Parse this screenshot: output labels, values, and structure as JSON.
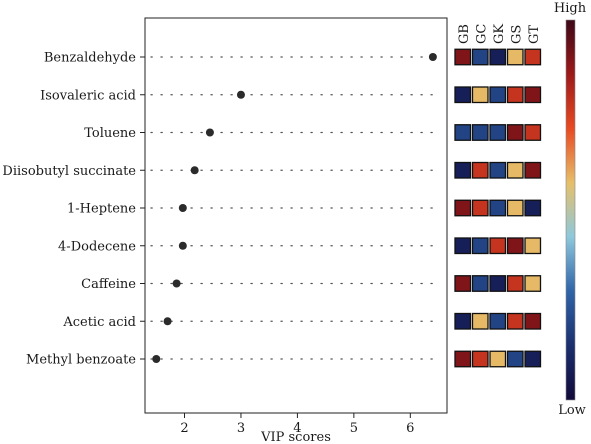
{
  "chart_data": {
    "type": "scatter",
    "title": "",
    "xlabel": "VIP scores",
    "ylabel": "",
    "xlim": [
      1.3,
      6.65
    ],
    "xticks": [
      1,
      2,
      3,
      4,
      5,
      6
    ],
    "grid": false,
    "compounds": [
      "Benzaldehyde",
      "Isovaleric acid",
      "Toluene",
      "Diisobutyl succinate",
      "1-Heptene",
      "4-Dodecene",
      "Caffeine",
      "Acetic acid",
      "Methyl benzoate"
    ],
    "vip": [
      6.4,
      3.0,
      2.45,
      2.18,
      1.97,
      1.97,
      1.86,
      1.7,
      1.5
    ],
    "groups": [
      "GB",
      "GC",
      "GK",
      "GS",
      "GT"
    ],
    "levels": [
      [
        0.9,
        0.2,
        0.08,
        0.58,
        0.78
      ],
      [
        0.08,
        0.58,
        0.2,
        0.78,
        0.9
      ],
      [
        0.2,
        0.2,
        0.2,
        0.9,
        0.78
      ],
      [
        0.08,
        0.78,
        0.2,
        0.58,
        0.9
      ],
      [
        0.9,
        0.78,
        0.2,
        0.58,
        0.08
      ],
      [
        0.08,
        0.2,
        0.78,
        0.9,
        0.58
      ],
      [
        0.9,
        0.2,
        0.08,
        0.78,
        0.58
      ],
      [
        0.08,
        0.58,
        0.2,
        0.78,
        0.9
      ],
      [
        0.9,
        0.78,
        0.58,
        0.2,
        0.08
      ]
    ],
    "colorbar": {
      "high_label": "High",
      "low_label": "Low"
    }
  },
  "colors": {
    "point": "#2b2b2b",
    "dots": "#555555",
    "scale": [
      "#120a3a",
      "#1a2f6e",
      "#2f64a8",
      "#8ec8dc",
      "#e6c06a",
      "#e84a22",
      "#9c1a1a",
      "#3d0818"
    ]
  }
}
